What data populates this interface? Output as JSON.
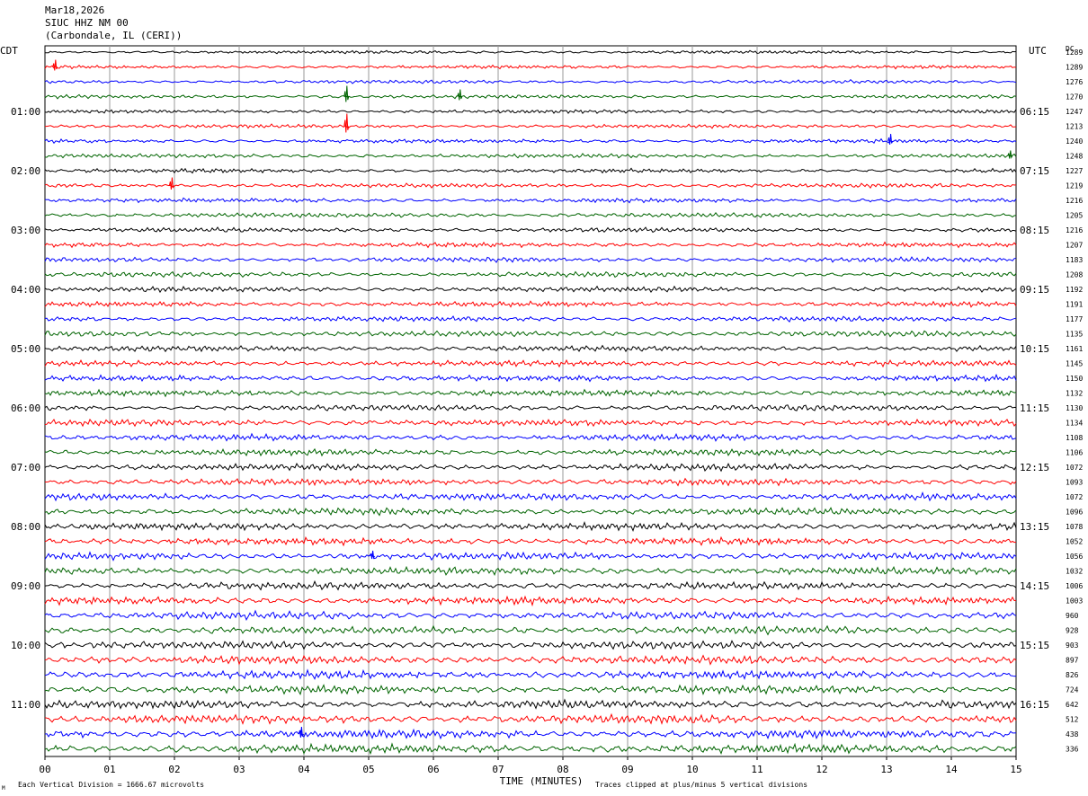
{
  "header": {
    "date": "Mar18,2026",
    "station": "SIUC HHZ NM 00",
    "location": "(Carbondale, IL (CERI))"
  },
  "labels": {
    "left_tz": "CDT",
    "right_tz": "UTC",
    "dc_label": "DC",
    "xlabel": "TIME (MINUTES)",
    "footer_left": "Each Vertical Division = 1666.67 microvolts",
    "footer_right": "Traces clipped at plus/minus 5 vertical divisions",
    "corner_mark": "M"
  },
  "colors": [
    "#000000",
    "#ff0000",
    "#0000ff",
    "#006400"
  ],
  "chart_data": {
    "type": "line",
    "title": "SIUC HHZ NM 00",
    "xlabel": "TIME (MINUTES)",
    "xlim": [
      0,
      15
    ],
    "x_ticks": [
      "00",
      "01",
      "02",
      "03",
      "04",
      "05",
      "06",
      "07",
      "08",
      "09",
      "10",
      "11",
      "12",
      "13",
      "14",
      "15"
    ],
    "minutes_per_trace": 15,
    "trace_count": 48,
    "left_hour_labels": [
      "01:00",
      "02:00",
      "03:00",
      "04:00",
      "05:00",
      "06:00",
      "07:00",
      "08:00",
      "09:00",
      "10:00",
      "11:00"
    ],
    "right_hour_labels": [
      "06:15",
      "07:15",
      "08:15",
      "09:15",
      "10:15",
      "11:15",
      "12:15",
      "13:15",
      "14:15",
      "15:15",
      "16:15"
    ],
    "dc_offsets": [
      1289,
      1289,
      1276,
      1270,
      1247,
      1213,
      1240,
      1248,
      1227,
      1219,
      1216,
      1205,
      1216,
      1207,
      1183,
      1208,
      1192,
      1191,
      1177,
      1135,
      1161,
      1145,
      1150,
      1132,
      1130,
      1134,
      1108,
      1106,
      1072,
      1093,
      1072,
      1096,
      1078,
      1052,
      1056,
      1032,
      1006,
      1003,
      960,
      928,
      903,
      897,
      826,
      724,
      642,
      512,
      438,
      336
    ],
    "grid": true
  }
}
